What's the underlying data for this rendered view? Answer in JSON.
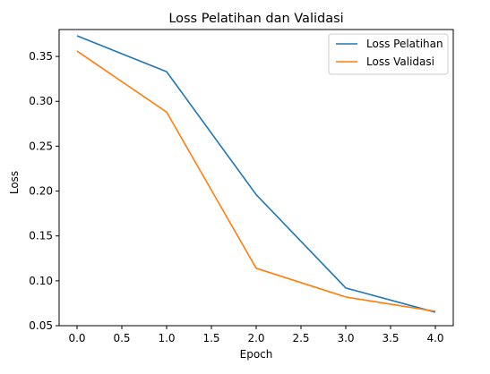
{
  "chart_data": {
    "type": "line",
    "title": "Loss Pelatihan dan Validasi",
    "xlabel": "Epoch",
    "ylabel": "Loss",
    "x": [
      0,
      1,
      2,
      3,
      4
    ],
    "xlim": [
      -0.2,
      4.2
    ],
    "ylim": [
      0.05,
      0.38
    ],
    "xticks": [
      "0.0",
      "0.5",
      "1.0",
      "1.5",
      "2.0",
      "2.5",
      "3.0",
      "3.5",
      "4.0"
    ],
    "yticks": [
      "0.05",
      "0.10",
      "0.15",
      "0.20",
      "0.25",
      "0.30",
      "0.35"
    ],
    "grid": false,
    "legend_position": "top-right",
    "series": [
      {
        "name": "Loss Pelatihan",
        "color": "#1f77b4",
        "values": [
          0.373,
          0.333,
          0.196,
          0.092,
          0.065
        ]
      },
      {
        "name": "Loss Validasi",
        "color": "#ff7f0e",
        "values": [
          0.356,
          0.288,
          0.114,
          0.082,
          0.066
        ]
      }
    ]
  }
}
